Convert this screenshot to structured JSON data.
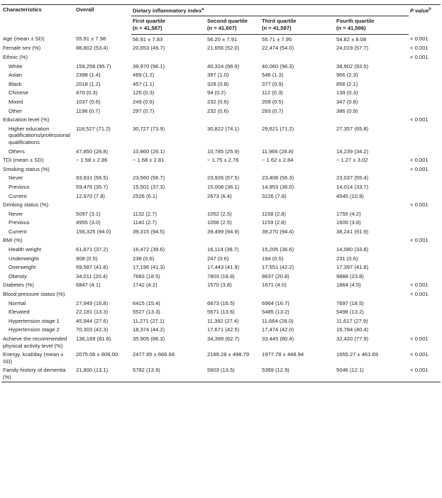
{
  "header": {
    "characteristics": "Characteristics",
    "overall": "Overall",
    "dii": "Dietary inflammatory index",
    "dii_note": "a",
    "p_value": "P value",
    "p_note": "b",
    "quartiles": [
      {
        "name": "First quartile",
        "n": "(n = 41,587)"
      },
      {
        "name": "Second quartile",
        "n": "(n = 41,607)"
      },
      {
        "name": "Third quartile",
        "n": "(n = 41,587)"
      },
      {
        "name": "Fourth quartile",
        "n": "(n = 41,596)"
      }
    ]
  },
  "table": {
    "rows": [
      {
        "cells": [
          "Age (mean ± SD)",
          "55.91 ± 7.98",
          "56.91 ± 7.83",
          "56.20 ± 7.91",
          "55.71 ± 7.95",
          "54.82 ± 8.08",
          "< 0.001"
        ]
      },
      {
        "cells": [
          "Female sex (%)",
          "88,802 (53.4)",
          "20,653 (49.7)",
          "21,656 (52.0)",
          "22,474 (54.0)",
          "24,019 (57.7)",
          "< 0.001"
        ]
      },
      {
        "cells": [
          "Ethnic (%)",
          null,
          null,
          null,
          null,
          null,
          "< 0.001"
        ],
        "items": [
          [
            "White",
            "159,256 (95.7)",
            "39,970 (96.1)",
            "40,324 (96.9)",
            "40,060 (96.3)",
            "38,902 (93.5)"
          ],
          [
            "Asian",
            "2398 (1.4)",
            "489 (1.2)",
            "397 (1.0)",
            "546 (1.3)",
            "966 (2.3)"
          ],
          [
            "Black",
            "2018 (1.2)",
            "457 (1.1)",
            "328 (0.8)",
            "377 (0.9)",
            "856 (2.1)"
          ],
          [
            "Chinese",
            "470 (0.3)",
            "125 (0.3)",
            "94 (0.2)",
            "112 (0.3)",
            "139 (0.3)"
          ],
          [
            "Mixed",
            "1037 (0.6)",
            "249 (0.6)",
            "232 (0.6)",
            "209 (0.5)",
            "347 (0.8)"
          ],
          [
            "Other",
            "1198 (0.7)",
            "297 (0.7)",
            "232 (0.6)",
            "283 (0.7)",
            "386 (0.9)"
          ]
        ]
      },
      {
        "cells": [
          "Education level (%)",
          null,
          null,
          null,
          null,
          null,
          "< 0.001"
        ],
        "items": [
          [
            "Higher education qualifications/professional qualifications",
            "118,527 (71.2)",
            "30,727 (73.9)",
            "30,822 (74.1)",
            "29,621 (71.2)",
            "27,357 (65.8)"
          ],
          [
            "Others",
            "47,850 (28.8)",
            "10,860 (26.1)",
            "10,785 (25.9)",
            "11,966 (28.8)",
            "14,239 (34.2)"
          ]
        ]
      },
      {
        "cells": [
          "TDI (mean ± SD)",
          "− 1.58 ± 2.86",
          "− 1.68 ± 2.81",
          "− 1.75 ± 2.76",
          "− 1.62 ± 2.84",
          "− 1.27 ± 3.02",
          "< 0.001"
        ]
      },
      {
        "cells": [
          "Smoking status (%)",
          null,
          null,
          null,
          null,
          null,
          "< 0.001"
        ],
        "items": [
          [
            "Never",
            "93,931 (56.5)",
            "23,560 (56.7)",
            "23,926 (57.5)",
            "23,408 (56.3)",
            "23,037 (55.4)"
          ],
          [
            "Previous",
            "59,476 (35.7)",
            "15,501 (37.3)",
            "15,008 (36.1)",
            "14,953 (36.0)",
            "14,014 (33.7)"
          ],
          [
            "Current",
            "12,970 (7.8)",
            "2526 (6.1)",
            "2673 (6.4)",
            "3226 (7.8)",
            "4545 (10.9)"
          ]
        ]
      },
      {
        "cells": [
          "Drinking status (%)",
          null,
          null,
          null,
          null,
          null,
          "< 0.001"
        ],
        "items": [
          [
            "Never",
            "5097 (3.1)",
            "1132 (2.7)",
            "1052 (2.5)",
            "1158 (2.8)",
            "1755 (4.2)"
          ],
          [
            "Previous",
            "4955 (3.0)",
            "1140 (2.7)",
            "1056 (2.5)",
            "1159 (2.8)",
            "1600 (3.8)"
          ],
          [
            "Current",
            "156,325 (94.0)",
            "39,315 (94.5)",
            "39,499 (94.9)",
            "39,270 (94.4)",
            "38,241 (91.9)"
          ]
        ]
      },
      {
        "cells": [
          "BMI (%)",
          null,
          null,
          null,
          null,
          null,
          "< 0.001"
        ],
        "items": [
          [
            "Health weight",
            "61,871 (37.2)",
            "16,472 (39.6)",
            "16,114 (38.7)",
            "15,205 (36.6)",
            "14,080 (33.8)"
          ],
          [
            "Underweight",
            "908 (0.5)",
            "236 (0.6)",
            "247 (0.6)",
            "194 (0.5)",
            "231 (0.6)"
          ],
          [
            "Overweight",
            "69,587 (41.8)",
            "17,196 (41.3)",
            "17,443 (41.9)",
            "17,551 (42.2)",
            "17,397 (41.8)"
          ],
          [
            "Obesity",
            "34,011 (20.4)",
            "7683 (18.5)",
            "7803 (18.8)",
            "8637 (20.8)",
            "9888 (23.8)"
          ]
        ]
      },
      {
        "cells": [
          "Diabetes (%)",
          "6847 (4.1)",
          "1742 (4.2)",
          "1570 (3.8)",
          "1671 (4.0)",
          "1864 (4.5)",
          "< 0.001"
        ]
      },
      {
        "cells": [
          "Blood pressure status (%)",
          null,
          null,
          null,
          null,
          null,
          "< 0.001"
        ],
        "items": [
          [
            "Normal",
            "27,949 (16.8)",
            "6415 (15.4)",
            "6873 (16.5)",
            "6964 (16.7)",
            "7697 (18.5)"
          ],
          [
            "Elevated",
            "22,181 (13.3)",
            "5527 (13.3)",
            "5671 (13.6)",
            "5485 (13.2)",
            "5498 (13.2)"
          ],
          [
            "Hypertension stage 1",
            "45,944 (27.6)",
            "11,271 (27.1)",
            "11,392 (27.4)",
            "11,664 (28.0)",
            "11,617 (27.9)"
          ],
          [
            "Hypertension stage 2",
            "70,303 (42.3)",
            "18,374 (44.2)",
            "17,671 (42.5)",
            "17,474 (42.0)",
            "16,784 (40.4)"
          ]
        ]
      },
      {
        "cells": [
          "Achieve the recommended physical activity level (%)",
          "136,169 (81.8)",
          "35,905 (86.3)",
          "34,399 (82.7)",
          "33,445 (80.4)",
          "32,420 (77.9)",
          "< 0.001"
        ]
      },
      {
        "cells": [
          "Energy, kcal/day (mean ± SD)",
          "2075.06 ± 606.00",
          "2477.95 ± 666.68",
          "2189.28 ± 498.79",
          "1977.78 ± 448.94",
          "1655.27 ± 461.69",
          "< 0.001"
        ]
      },
      {
        "cells": [
          "Family history of dementia (%)",
          "21,800 (13.1)",
          "5782 (13.9)",
          "5603 (13.5)",
          "5369 (12.9)",
          "5046 (12.1)",
          "< 0.001"
        ]
      }
    ]
  }
}
